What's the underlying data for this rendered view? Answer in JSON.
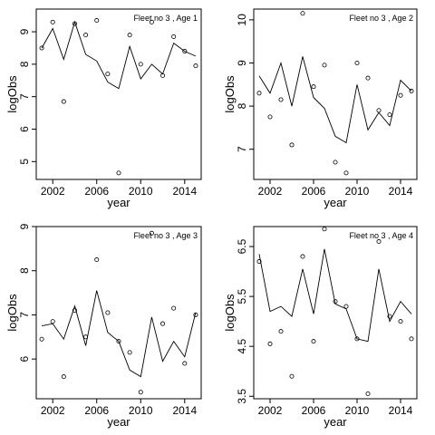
{
  "chart_data": [
    {
      "type": "scatter",
      "title": "Fleet no 3 , Age 1",
      "xlabel": "year",
      "ylabel": "logObs",
      "xlim": [
        2000.5,
        2015.5
      ],
      "ylim": [
        4.45,
        9.7
      ],
      "xticks": [
        "2002",
        "2006",
        "2010",
        "2014"
      ],
      "yticks": [
        "5",
        "6",
        "7",
        "8",
        "9"
      ],
      "x": [
        2001,
        2002,
        2003,
        2004,
        2005,
        2006,
        2007,
        2008,
        2009,
        2010,
        2011,
        2012,
        2013,
        2014,
        2015
      ],
      "series": [
        {
          "values": [
            8.5,
            9.3,
            6.85,
            9.25,
            8.9,
            9.35,
            7.7,
            4.65,
            8.9,
            8.0,
            9.3,
            7.65,
            8.85,
            8.4,
            7.95
          ]
        },
        {
          "values": [
            8.5,
            9.1,
            8.15,
            9.3,
            8.3,
            8.1,
            7.45,
            7.25,
            8.55,
            7.55,
            8.0,
            7.7,
            8.65,
            8.4,
            8.25
          ]
        }
      ]
    },
    {
      "type": "scatter",
      "title": "Fleet no 3 , Age 2",
      "xlabel": "year",
      "ylabel": "logObs",
      "xlim": [
        2000.5,
        2015.5
      ],
      "ylim": [
        6.3,
        10.25
      ],
      "xticks": [
        "2002",
        "2006",
        "2010",
        "2014"
      ],
      "yticks": [
        "7",
        "8",
        "9",
        "10"
      ],
      "x": [
        2001,
        2002,
        2003,
        2004,
        2005,
        2006,
        2007,
        2008,
        2009,
        2010,
        2011,
        2012,
        2013,
        2014,
        2015
      ],
      "series": [
        {
          "values": [
            8.3,
            7.75,
            8.15,
            7.1,
            10.15,
            8.45,
            8.95,
            6.7,
            6.45,
            9.0,
            8.65,
            7.9,
            7.8,
            8.25,
            8.35
          ]
        },
        {
          "values": [
            8.7,
            8.3,
            9.0,
            8.0,
            9.15,
            8.2,
            7.95,
            7.3,
            7.15,
            8.5,
            7.45,
            7.85,
            7.55,
            8.6,
            8.35
          ]
        }
      ]
    },
    {
      "type": "scatter",
      "title": "Fleet no 3 , Age 3",
      "xlabel": "year",
      "ylabel": "logObs",
      "xlim": [
        2000.5,
        2015.5
      ],
      "ylim": [
        5.1,
        9.0
      ],
      "xticks": [
        "2002",
        "2006",
        "2010",
        "2014"
      ],
      "yticks": [
        "6",
        "7",
        "8",
        "9"
      ],
      "x": [
        2001,
        2002,
        2003,
        2004,
        2005,
        2006,
        2007,
        2008,
        2009,
        2010,
        2011,
        2012,
        2013,
        2014,
        2015
      ],
      "series": [
        {
          "values": [
            6.45,
            6.85,
            5.6,
            7.1,
            6.5,
            8.25,
            7.05,
            6.4,
            6.15,
            5.25,
            8.85,
            6.8,
            7.15,
            5.9,
            7.0
          ]
        },
        {
          "values": [
            6.75,
            6.8,
            6.45,
            7.2,
            6.3,
            7.55,
            6.6,
            6.4,
            5.75,
            5.6,
            6.95,
            5.95,
            6.4,
            6.05,
            7.05
          ]
        }
      ]
    },
    {
      "type": "scatter",
      "title": "Fleet no 3 , Age 4",
      "xlabel": "year",
      "ylabel": "logObs",
      "xlim": [
        2000.5,
        2015.5
      ],
      "ylim": [
        3.45,
        6.9
      ],
      "xticks": [
        "2002",
        "2006",
        "2010",
        "2014"
      ],
      "yticks": [
        "3.5",
        "4.5",
        "5.5",
        "6.5"
      ],
      "x": [
        2001,
        2002,
        2003,
        2004,
        2005,
        2006,
        2007,
        2008,
        2009,
        2010,
        2011,
        2012,
        2013,
        2014,
        2015
      ],
      "series": [
        {
          "values": [
            6.2,
            4.55,
            4.8,
            3.9,
            6.3,
            4.6,
            6.85,
            5.4,
            5.3,
            4.65,
            3.55,
            6.6,
            5.1,
            5.0,
            4.65
          ]
        },
        {
          "values": [
            6.35,
            5.2,
            5.3,
            5.1,
            6.05,
            5.15,
            6.45,
            5.35,
            5.25,
            4.65,
            4.6,
            6.05,
            5.0,
            5.4,
            5.15
          ]
        }
      ]
    }
  ]
}
